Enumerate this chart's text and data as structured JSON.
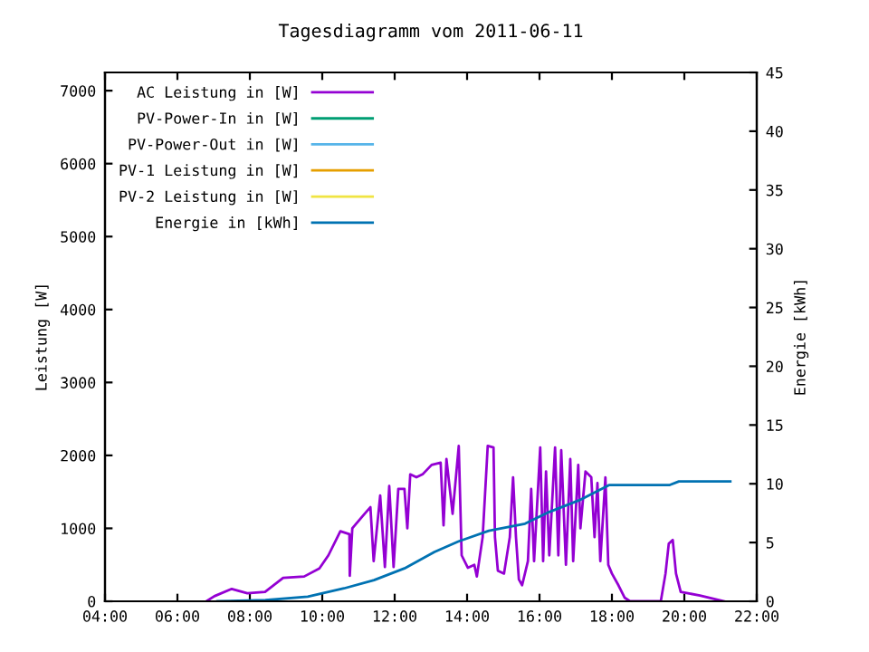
{
  "chart_data": {
    "type": "line",
    "title": "Tagesdiagramm vom 2011-06-11",
    "ylabel": "Leistung [W]",
    "y2label": "Energie [kWh]",
    "xlim": [
      4,
      22
    ],
    "xticks": [
      {
        "value": 4,
        "label": "04:00"
      },
      {
        "value": 6,
        "label": "06:00"
      },
      {
        "value": 8,
        "label": "08:00"
      },
      {
        "value": 10,
        "label": "10:00"
      },
      {
        "value": 12,
        "label": "12:00"
      },
      {
        "value": 14,
        "label": "14:00"
      },
      {
        "value": 16,
        "label": "16:00"
      },
      {
        "value": 18,
        "label": "18:00"
      },
      {
        "value": 20,
        "label": "20:00"
      },
      {
        "value": 22,
        "label": "22:00"
      }
    ],
    "ylim": [
      0,
      7250
    ],
    "yticks": [
      0,
      1000,
      2000,
      3000,
      4000,
      5000,
      6000,
      7000
    ],
    "y2lim": [
      0,
      45
    ],
    "y2ticks": [
      0,
      5,
      10,
      15,
      20,
      25,
      30,
      35,
      40,
      45
    ],
    "legend": "top left",
    "line_style": "solid",
    "series": [
      {
        "name": "AC Leistung in [W]",
        "color": "#9400d3",
        "x": [
          6.8,
          7.02,
          7.5,
          7.93,
          8.42,
          8.92,
          9.5,
          9.92,
          10.17,
          10.5,
          10.75,
          10.76,
          10.83,
          11.17,
          11.33,
          11.42,
          11.6,
          11.73,
          11.85,
          11.97,
          12.1,
          12.27,
          12.35,
          12.43,
          12.6,
          12.77,
          13.02,
          13.27,
          13.35,
          13.43,
          13.6,
          13.77,
          13.85,
          14.02,
          14.2,
          14.27,
          14.43,
          14.57,
          14.73,
          14.77,
          14.85,
          15.02,
          15.18,
          15.27,
          15.35,
          15.43,
          15.52,
          15.68,
          15.77,
          15.85,
          16.02,
          16.1,
          16.18,
          16.27,
          16.43,
          16.52,
          16.6,
          16.73,
          16.85,
          16.93,
          17.07,
          17.13,
          17.27,
          17.43,
          17.52,
          17.6,
          17.68,
          17.82,
          17.9,
          18.0,
          18.18,
          18.35,
          18.5,
          19.35,
          19.48,
          19.57,
          19.68,
          19.77,
          19.9,
          20.1,
          20.43,
          20.77,
          21.1
        ],
        "values": [
          0,
          70,
          170,
          110,
          130,
          320,
          340,
          450,
          630,
          960,
          920,
          350,
          1000,
          1200,
          1290,
          550,
          1450,
          470,
          1580,
          470,
          1540,
          1540,
          1000,
          1740,
          1700,
          1740,
          1870,
          1900,
          1040,
          1950,
          1200,
          2130,
          630,
          460,
          500,
          340,
          880,
          2130,
          2110,
          880,
          420,
          380,
          880,
          1700,
          880,
          300,
          220,
          550,
          1540,
          550,
          2110,
          550,
          1780,
          630,
          2110,
          630,
          2070,
          500,
          1950,
          550,
          1870,
          1000,
          1780,
          1700,
          880,
          1620,
          550,
          1700,
          500,
          380,
          220,
          50,
          0,
          0,
          380,
          790,
          840,
          380,
          130,
          110,
          80,
          40,
          0
        ]
      },
      {
        "name": "PV-Power-In in [W]",
        "color": "#009e73"
      },
      {
        "name": "PV-Power-Out in [W]",
        "color": "#56b4e9"
      },
      {
        "name": "PV-1 Leistung in [W]",
        "color": "#e69f00"
      },
      {
        "name": "PV-2 Leistung in [W]",
        "color": "#f0e442"
      },
      {
        "name": "Energie in [kWh]",
        "color": "#0072b2",
        "axis": "y2",
        "x": [
          7.1,
          8.43,
          9.6,
          10.6,
          11.43,
          12.27,
          13.1,
          13.77,
          14.6,
          15.6,
          16.27,
          17.1,
          17.93,
          19.6,
          19.85,
          21.27
        ],
        "values": [
          0,
          0.1,
          0.4,
          1.1,
          1.8,
          2.8,
          4.2,
          5.1,
          6.0,
          6.6,
          7.6,
          8.6,
          9.9,
          9.9,
          10.2,
          10.2
        ]
      }
    ]
  }
}
